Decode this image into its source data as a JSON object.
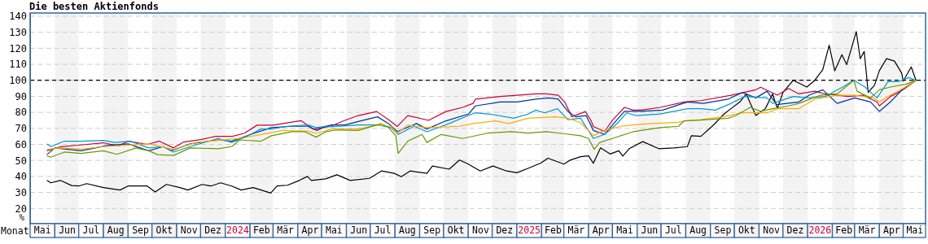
{
  "chart_data": {
    "type": "line",
    "title": "Die besten Aktienfonds",
    "xlabel": "Monat",
    "ylabel": "%",
    "xlim": [
      "2023-05-01",
      "2026-05-29"
    ],
    "ylim": [
      10.5,
      142
    ],
    "yticks": [
      20,
      30,
      40,
      50,
      60,
      70,
      80,
      90,
      100,
      110,
      120,
      130,
      140
    ],
    "xticks": [
      {
        "value": "2023-05-16",
        "label": "Mai"
      },
      {
        "value": "2023-06-16",
        "label": "Jun"
      },
      {
        "value": "2023-07-16",
        "label": "Jul"
      },
      {
        "value": "2023-08-16",
        "label": "Aug"
      },
      {
        "value": "2023-09-16",
        "label": "Sep"
      },
      {
        "value": "2023-10-16",
        "label": "Okt"
      },
      {
        "value": "2023-11-16",
        "label": "Nov"
      },
      {
        "value": "2023-12-16",
        "label": "Dez"
      },
      {
        "value": "2024-01-16",
        "label": "2024"
      },
      {
        "value": "2024-02-15",
        "label": "Feb"
      },
      {
        "value": "2024-03-16",
        "label": "Mär"
      },
      {
        "value": "2024-04-16",
        "label": "Apr"
      },
      {
        "value": "2024-05-16",
        "label": "Mai"
      },
      {
        "value": "2024-06-16",
        "label": "Jun"
      },
      {
        "value": "2024-07-16",
        "label": "Jul"
      },
      {
        "value": "2024-08-16",
        "label": "Aug"
      },
      {
        "value": "2024-09-16",
        "label": "Sep"
      },
      {
        "value": "2024-10-16",
        "label": "Okt"
      },
      {
        "value": "2024-11-16",
        "label": "Nov"
      },
      {
        "value": "2024-12-16",
        "label": "Dez"
      },
      {
        "value": "2025-01-16",
        "label": "2025"
      },
      {
        "value": "2025-02-15",
        "label": "Feb"
      },
      {
        "value": "2025-03-16",
        "label": "Mär"
      },
      {
        "value": "2025-04-16",
        "label": "Apr"
      },
      {
        "value": "2025-05-16",
        "label": "Mai"
      },
      {
        "value": "2025-06-16",
        "label": "Jun"
      },
      {
        "value": "2025-07-16",
        "label": "Jul"
      },
      {
        "value": "2025-08-16",
        "label": "Aug"
      },
      {
        "value": "2025-09-16",
        "label": "Sep"
      },
      {
        "value": "2025-10-16",
        "label": "Okt"
      },
      {
        "value": "2025-11-16",
        "label": "Nov"
      },
      {
        "value": "2025-12-16",
        "label": "Dez"
      },
      {
        "value": "2026-01-16",
        "label": "2026"
      },
      {
        "value": "2026-02-15",
        "label": "Feb"
      },
      {
        "value": "2026-03-16",
        "label": "Mär"
      },
      {
        "value": "2026-04-16",
        "label": "Apr"
      },
      {
        "value": "2026-05-15",
        "label": "Mai"
      }
    ],
    "grid": "y",
    "line_style": "solid",
    "bands": [
      {
        "axis": "x",
        "from": "2023-06-01",
        "to": "2023-07-01",
        "color": "#f3f3f3"
      },
      {
        "axis": "x",
        "from": "2023-08-01",
        "to": "2023-09-01",
        "color": "#f3f3f3"
      },
      {
        "axis": "x",
        "from": "2023-10-01",
        "to": "2023-11-01",
        "color": "#f3f3f3"
      },
      {
        "axis": "x",
        "from": "2023-12-01",
        "to": "2024-01-01",
        "color": "#f3f3f3"
      },
      {
        "axis": "x",
        "from": "2024-02-01",
        "to": "2024-03-01",
        "color": "#f3f3f3"
      },
      {
        "axis": "x",
        "from": "2024-04-01",
        "to": "2024-05-01",
        "color": "#f3f3f3"
      },
      {
        "axis": "x",
        "from": "2024-06-01",
        "to": "2024-07-01",
        "color": "#f3f3f3"
      },
      {
        "axis": "x",
        "from": "2024-08-01",
        "to": "2024-09-01",
        "color": "#f3f3f3"
      },
      {
        "axis": "x",
        "from": "2024-10-01",
        "to": "2024-11-01",
        "color": "#f3f3f3"
      },
      {
        "axis": "x",
        "from": "2024-12-01",
        "to": "2025-01-01",
        "color": "#f3f3f3"
      },
      {
        "axis": "x",
        "from": "2025-02-01",
        "to": "2025-03-01",
        "color": "#f3f3f3"
      },
      {
        "axis": "x",
        "from": "2025-04-01",
        "to": "2025-05-01",
        "color": "#f3f3f3"
      },
      {
        "axis": "x",
        "from": "2025-06-01",
        "to": "2025-07-01",
        "color": "#f3f3f3"
      },
      {
        "axis": "x",
        "from": "2025-08-01",
        "to": "2025-09-01",
        "color": "#f3f3f3"
      },
      {
        "axis": "x",
        "from": "2025-10-01",
        "to": "2025-11-01",
        "color": "#f3f3f3"
      },
      {
        "axis": "x",
        "from": "2025-12-01",
        "to": "2026-01-01",
        "color": "#f3f3f3"
      },
      {
        "axis": "x",
        "from": "2026-02-01",
        "to": "2026-03-01",
        "color": "#f3f3f3"
      },
      {
        "axis": "x",
        "from": "2026-04-01",
        "to": "2026-05-01",
        "color": "#f3f3f3"
      }
    ],
    "ref_lines": [
      {
        "axis": "y",
        "value": 100,
        "color": "#000000",
        "line_style": "dashed"
      }
    ],
    "series": [
      {
        "color": "#000000",
        "x": [
          "2023-05-22",
          "2023-05-27",
          "2023-06-08",
          "2023-06-22",
          "2023-07-01",
          "2023-07-11",
          "2023-08-01",
          "2023-08-22",
          "2023-09-01",
          "2023-09-25",
          "2023-10-05",
          "2023-10-19",
          "2023-11-05",
          "2023-11-15",
          "2023-12-03",
          "2023-12-14",
          "2023-12-26",
          "2024-01-09",
          "2024-01-21",
          "2024-02-05",
          "2024-02-15",
          "2024-02-27",
          "2024-03-06",
          "2024-03-19",
          "2024-04-03",
          "2024-04-13",
          "2024-04-18",
          "2024-05-06",
          "2024-05-20",
          "2024-06-06",
          "2024-06-30",
          "2024-07-15",
          "2024-07-31",
          "2024-08-09",
          "2024-08-20",
          "2024-09-10",
          "2024-09-17",
          "2024-10-08",
          "2024-10-21",
          "2024-11-01",
          "2024-11-16",
          "2024-12-02",
          "2024-12-19",
          "2025-01-01",
          "2025-01-15",
          "2025-01-31",
          "2025-02-09",
          "2025-03-01",
          "2025-03-09",
          "2025-03-22",
          "2025-04-01",
          "2025-04-07",
          "2025-04-16",
          "2025-04-28",
          "2025-05-09",
          "2025-05-14",
          "2025-05-22",
          "2025-06-08",
          "2025-06-28",
          "2025-07-17",
          "2025-08-03",
          "2025-08-08",
          "2025-08-20",
          "2025-09-05",
          "2025-09-18",
          "2025-09-27",
          "2025-10-08",
          "2025-10-16",
          "2025-10-21",
          "2025-10-28",
          "2025-11-09",
          "2025-11-18",
          "2025-11-24",
          "2025-12-01",
          "2025-12-14",
          "2025-12-31",
          "2026-01-10",
          "2026-01-20",
          "2026-01-28",
          "2026-02-04",
          "2026-02-13",
          "2026-02-19",
          "2026-03-03",
          "2026-03-08",
          "2026-03-13",
          "2026-03-18",
          "2026-03-26",
          "2026-04-01",
          "2026-04-10",
          "2026-04-20",
          "2026-04-29",
          "2026-05-01",
          "2026-05-11",
          "2026-05-17"
        ],
        "values": [
          37.5,
          36,
          37.5,
          34.3,
          34,
          35.5,
          33,
          31.5,
          34,
          34,
          30.3,
          35,
          33,
          31.5,
          35,
          34,
          36,
          34,
          31.5,
          33,
          31.5,
          29.6,
          34,
          34.5,
          37.5,
          40,
          37.5,
          38.5,
          41,
          37.5,
          38.8,
          43.4,
          41.9,
          39.8,
          43.4,
          41.9,
          46.5,
          44.5,
          50.2,
          47.7,
          43.4,
          46.5,
          43.4,
          42.3,
          45,
          48.3,
          51.4,
          47.7,
          50.2,
          52.3,
          52.8,
          48.2,
          57.8,
          54,
          56,
          52.7,
          57.3,
          61.7,
          57.3,
          57.8,
          58.6,
          65.4,
          65,
          72.2,
          78.9,
          82.4,
          86.5,
          91.5,
          85.6,
          78,
          82.4,
          91.5,
          82.4,
          92.4,
          100,
          95.8,
          100,
          106.7,
          121.9,
          105.9,
          116,
          109.8,
          130.4,
          113.5,
          118,
          92.4,
          97,
          106,
          113.5,
          112,
          104.5,
          99.5,
          108.4,
          100
        ]
      },
      {
        "color": "#cc0033",
        "x": [
          "2023-05-22",
          "2023-06-08",
          "2023-07-01",
          "2023-08-01",
          "2023-08-20",
          "2023-09-01",
          "2023-09-25",
          "2023-10-10",
          "2023-10-28",
          "2023-11-10",
          "2023-12-01",
          "2023-12-20",
          "2024-01-10",
          "2024-01-25",
          "2024-02-10",
          "2024-03-01",
          "2024-03-20",
          "2024-04-05",
          "2024-04-20",
          "2024-05-13",
          "2024-05-30",
          "2024-06-16",
          "2024-07-09",
          "2024-07-24",
          "2024-08-04",
          "2024-08-17",
          "2024-09-12",
          "2024-10-04",
          "2024-10-25",
          "2024-11-07",
          "2024-11-10",
          "2024-12-11",
          "2025-01-01",
          "2025-01-25",
          "2025-02-07",
          "2025-02-22",
          "2025-03-02",
          "2025-03-11",
          "2025-03-28",
          "2025-04-04",
          "2025-04-07",
          "2025-04-21",
          "2025-05-01",
          "2025-05-16",
          "2025-05-27",
          "2025-06-06",
          "2025-06-30",
          "2025-07-30",
          "2025-08-20",
          "2025-09-27",
          "2025-10-28",
          "2025-11-03",
          "2025-11-24",
          "2025-12-08",
          "2025-12-21",
          "2026-01-10",
          "2026-01-23",
          "2026-02-21",
          "2026-03-11",
          "2026-03-29",
          "2026-04-01",
          "2026-04-15",
          "2026-05-01",
          "2026-05-17"
        ],
        "values": [
          56,
          58.5,
          59.5,
          61,
          59,
          62,
          60,
          62,
          57.8,
          61.5,
          63,
          65,
          65,
          67,
          72,
          72,
          73.5,
          74.8,
          69.5,
          71.4,
          75,
          78,
          80.5,
          75.4,
          71.2,
          78,
          75,
          80.5,
          83.1,
          85.6,
          88.2,
          89.9,
          90.7,
          91.5,
          91.5,
          90.7,
          86.5,
          77.2,
          80.5,
          75,
          71.2,
          68,
          75,
          83.1,
          81.4,
          81.4,
          83.1,
          86.5,
          87.3,
          90.7,
          94.1,
          95.7,
          90.7,
          94.9,
          91.5,
          93.2,
          91.5,
          89.9,
          90.7,
          86.5,
          84,
          89.9,
          94.1,
          100
        ]
      },
      {
        "color": "#003399",
        "x": [
          "2023-05-22",
          "2023-06-01",
          "2023-07-04",
          "2023-08-07",
          "2023-09-01",
          "2023-09-27",
          "2023-10-15",
          "2023-10-25",
          "2023-11-18",
          "2023-12-23",
          "2024-01-09",
          "2024-02-02",
          "2024-02-28",
          "2024-03-25",
          "2024-04-14",
          "2024-04-25",
          "2024-05-06",
          "2024-05-13",
          "2024-05-30",
          "2024-06-19",
          "2024-07-10",
          "2024-07-24",
          "2024-08-04",
          "2024-08-28",
          "2024-09-10",
          "2024-10-04",
          "2024-11-01",
          "2024-11-10",
          "2024-12-11",
          "2025-01-01",
          "2025-01-25",
          "2025-02-10",
          "2025-02-22",
          "2025-03-06",
          "2025-03-16",
          "2025-03-29",
          "2025-04-07",
          "2025-04-21",
          "2025-05-01",
          "2025-05-16",
          "2025-06-06",
          "2025-07-03",
          "2025-08-03",
          "2025-08-23",
          "2025-09-23",
          "2025-10-11",
          "2025-10-28",
          "2025-11-11",
          "2025-11-23",
          "2025-12-21",
          "2026-01-03",
          "2026-01-20",
          "2026-02-07",
          "2026-03-01",
          "2026-03-21",
          "2026-04-01",
          "2026-04-15",
          "2026-05-01",
          "2026-05-17"
        ],
        "values": [
          53.6,
          57.8,
          56,
          59.4,
          60.3,
          56,
          58.6,
          56,
          60.3,
          62.8,
          62,
          66.2,
          70.5,
          71.3,
          71.3,
          68.7,
          71.3,
          72.1,
          72.1,
          74.7,
          77.2,
          73,
          68,
          73,
          69.6,
          74.7,
          78.9,
          84,
          86.5,
          86.5,
          88.2,
          89,
          88.2,
          80.6,
          77.2,
          78,
          68.7,
          66.2,
          72.1,
          80.6,
          80.6,
          81.4,
          86.5,
          85.6,
          88.2,
          92.4,
          89,
          93.2,
          84.8,
          86.5,
          90.7,
          94.1,
          85.6,
          89,
          86.5,
          80.6,
          86.5,
          94.9,
          100
        ]
      },
      {
        "color": "#0099cc",
        "x": [
          "2023-05-22",
          "2023-05-27",
          "2023-06-13",
          "2023-07-04",
          "2023-08-01",
          "2023-08-15",
          "2023-09-04",
          "2023-09-27",
          "2023-10-15",
          "2023-10-28",
          "2023-11-18",
          "2023-12-23",
          "2024-01-09",
          "2024-01-26",
          "2024-02-15",
          "2024-02-28",
          "2024-03-19",
          "2024-04-14",
          "2024-04-24",
          "2024-05-06",
          "2024-05-13",
          "2024-06-16",
          "2024-07-10",
          "2024-07-27",
          "2024-08-05",
          "2024-08-25",
          "2024-09-10",
          "2024-10-08",
          "2024-11-01",
          "2024-11-10",
          "2024-11-28",
          "2024-12-28",
          "2025-01-15",
          "2025-01-25",
          "2025-02-05",
          "2025-02-21",
          "2025-03-06",
          "2025-03-22",
          "2025-04-07",
          "2025-04-21",
          "2025-05-05",
          "2025-05-19",
          "2025-05-31",
          "2025-06-30",
          "2025-08-03",
          "2025-08-20",
          "2025-09-07",
          "2025-09-27",
          "2025-10-14",
          "2025-11-11",
          "2025-11-18",
          "2025-12-14",
          "2026-01-03",
          "2026-01-23",
          "2026-02-14",
          "2026-02-28",
          "2026-03-14",
          "2026-03-29",
          "2026-04-12",
          "2026-04-25",
          "2026-05-08",
          "2026-05-17"
        ],
        "values": [
          60.3,
          58.6,
          62,
          62,
          62.5,
          61.2,
          62,
          57.8,
          58.6,
          55.2,
          58.6,
          63.7,
          61.2,
          64.5,
          69.6,
          69.6,
          71.3,
          72.1,
          70.5,
          71.3,
          71,
          72.1,
          72.1,
          70.5,
          66.2,
          71.3,
          67.9,
          73,
          78,
          79.7,
          78.9,
          76.3,
          78.9,
          81.4,
          79.7,
          82.3,
          75.4,
          76.3,
          63.7,
          66.2,
          72.1,
          79.7,
          78,
          79,
          82.3,
          82.3,
          81.4,
          85.6,
          89.9,
          89,
          85.6,
          89.9,
          89,
          89.9,
          95.8,
          100,
          95.8,
          89,
          99.2,
          99.2,
          101.7,
          100
        ]
      },
      {
        "color": "#ffaa00",
        "x": [
          "2023-05-22",
          "2023-06-08",
          "2023-07-04",
          "2023-08-01",
          "2023-08-28",
          "2023-09-27",
          "2023-10-28",
          "2023-11-26",
          "2023-12-23",
          "2024-01-19",
          "2024-02-15",
          "2024-03-13",
          "2024-04-14",
          "2024-04-24",
          "2024-05-06",
          "2024-05-13",
          "2024-06-16",
          "2024-07-10",
          "2024-07-27",
          "2024-08-04",
          "2024-08-17",
          "2024-09-10",
          "2024-10-21",
          "2024-11-07",
          "2024-12-05",
          "2024-12-22",
          "2025-01-15",
          "2025-02-18",
          "2025-03-06",
          "2025-03-22",
          "2025-04-07",
          "2025-04-21",
          "2025-05-12",
          "2025-05-26",
          "2025-06-19",
          "2025-07-23",
          "2025-07-30",
          "2025-08-20",
          "2025-09-16",
          "2025-10-11",
          "2025-11-11",
          "2025-11-24",
          "2025-12-21",
          "2026-01-10",
          "2026-02-07",
          "2026-03-01",
          "2026-03-25",
          "2026-04-01",
          "2026-04-15",
          "2026-05-04",
          "2026-05-17"
        ],
        "values": [
          56.9,
          57.8,
          57,
          58.6,
          59.4,
          60.3,
          56.9,
          61.2,
          62.5,
          63.7,
          66.2,
          68.7,
          68.2,
          67,
          68.5,
          69.6,
          69.6,
          72,
          71.3,
          67,
          72,
          70.5,
          71.3,
          73,
          74.7,
          73,
          76.3,
          77.2,
          76.3,
          73.6,
          65.4,
          68.7,
          71.3,
          72.1,
          73,
          73.8,
          74.7,
          75.4,
          77.2,
          79.7,
          79.7,
          82.3,
          82.3,
          88.2,
          90.7,
          90.7,
          89,
          86.5,
          90.7,
          95.8,
          100
        ]
      },
      {
        "color": "#669900",
        "x": [
          "2023-05-22",
          "2023-05-27",
          "2023-06-13",
          "2023-07-04",
          "2023-08-01",
          "2023-08-18",
          "2023-09-11",
          "2023-09-27",
          "2023-10-08",
          "2023-10-28",
          "2023-11-18",
          "2023-12-23",
          "2024-01-09",
          "2024-01-19",
          "2024-02-15",
          "2024-02-28",
          "2024-03-25",
          "2024-04-10",
          "2024-04-24",
          "2024-05-06",
          "2024-05-20",
          "2024-06-16",
          "2024-07-14",
          "2024-07-24",
          "2024-08-02",
          "2024-08-05",
          "2024-08-17",
          "2024-09-04",
          "2024-09-10",
          "2024-09-28",
          "2024-10-25",
          "2024-11-25",
          "2024-12-25",
          "2025-01-15",
          "2025-02-07",
          "2025-03-02",
          "2025-03-22",
          "2025-04-01",
          "2025-04-08",
          "2025-04-15",
          "2025-05-01",
          "2025-05-27",
          "2025-06-30",
          "2025-07-23",
          "2025-07-30",
          "2025-08-20",
          "2025-09-23",
          "2025-10-03",
          "2025-10-21",
          "2025-11-03",
          "2025-11-18",
          "2025-12-08",
          "2025-12-21",
          "2026-01-17",
          "2026-02-07",
          "2026-02-28",
          "2026-03-04",
          "2026-03-21",
          "2026-04-01",
          "2026-04-15",
          "2026-05-04",
          "2026-05-17"
        ],
        "values": [
          52.8,
          52,
          55.2,
          54.4,
          56,
          53.8,
          57.8,
          56,
          53.6,
          53.1,
          57.8,
          57.3,
          58.6,
          62.8,
          62,
          65.4,
          67.9,
          67.9,
          64.5,
          67.9,
          69,
          68.7,
          72.9,
          70.5,
          65.4,
          54.4,
          62,
          66.2,
          61.2,
          66.2,
          63.7,
          67,
          67.9,
          67,
          67.9,
          66.6,
          65.4,
          63.7,
          56.9,
          61.2,
          63.7,
          67.9,
          70.5,
          71.3,
          74.7,
          75.2,
          76.3,
          78,
          83.1,
          80.6,
          82.3,
          84,
          85.6,
          90.7,
          91.5,
          100,
          93.2,
          89,
          94.1,
          95.8,
          97.5,
          100
        ]
      }
    ]
  }
}
